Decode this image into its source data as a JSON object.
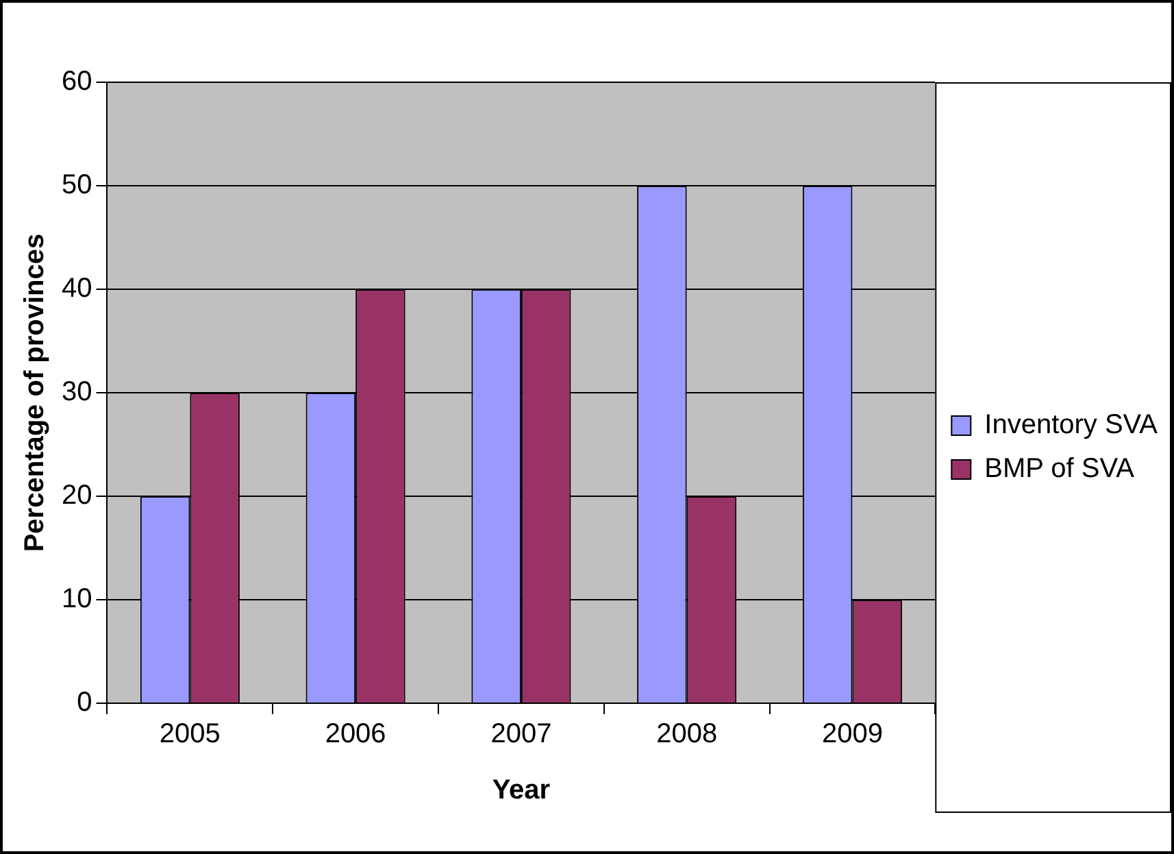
{
  "chart_data": {
    "type": "bar",
    "xlabel": "Year",
    "ylabel": "Percentage of provinces",
    "categories": [
      "2005",
      "2006",
      "2007",
      "2008",
      "2009"
    ],
    "series": [
      {
        "name": "Inventory SVA",
        "color": "#9999ff",
        "values": [
          20,
          30,
          40,
          50,
          50
        ]
      },
      {
        "name": "BMP of SVA",
        "color": "#993366",
        "values": [
          30,
          40,
          40,
          20,
          10
        ]
      }
    ],
    "ylim": [
      0,
      60
    ],
    "yticks": [
      0,
      10,
      20,
      30,
      40,
      50,
      60
    ],
    "grid": "y",
    "legend": "right"
  }
}
